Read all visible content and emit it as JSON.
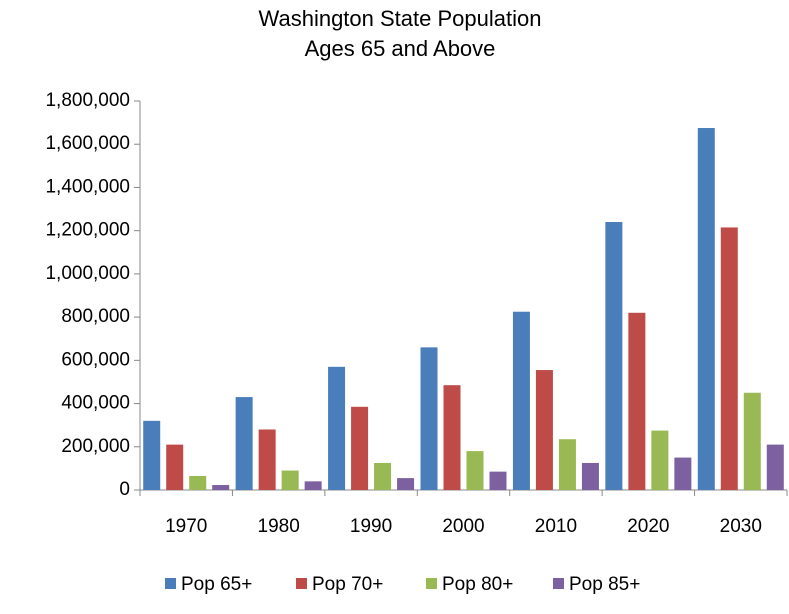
{
  "chart_data": {
    "type": "bar",
    "title": "Washington State Population",
    "subtitle": "Ages 65 and Above",
    "categories": [
      "1970",
      "1980",
      "1990",
      "2000",
      "2010",
      "2020",
      "2030"
    ],
    "series": [
      {
        "name": "Pop 65+",
        "color": "#4a7ebb",
        "values": [
          320000,
          430000,
          570000,
          660000,
          825000,
          1240000,
          1675000
        ]
      },
      {
        "name": "Pop 70+",
        "color": "#be4b48",
        "values": [
          210000,
          280000,
          385000,
          485000,
          555000,
          820000,
          1215000
        ]
      },
      {
        "name": "Pop 80+",
        "color": "#98b954",
        "values": [
          65000,
          90000,
          125000,
          180000,
          235000,
          275000,
          450000
        ]
      },
      {
        "name": "Pop 85+",
        "color": "#7d60a0",
        "values": [
          23000,
          40000,
          55000,
          85000,
          125000,
          150000,
          210000
        ]
      }
    ],
    "ylim": [
      0,
      1800000
    ],
    "yticks": [
      0,
      {
        "value": 200000,
        "label": "200,000"
      },
      {
        "value": 400000,
        "label": "400,000"
      },
      {
        "value": 600000,
        "label": "600,000"
      },
      {
        "value": 800000,
        "label": "800,000"
      },
      {
        "value": 1000000,
        "label": "1,000,000"
      },
      {
        "value": 1200000,
        "label": "1,200,000"
      },
      {
        "value": 1400000,
        "label": "1,400,000"
      },
      {
        "value": 1600000,
        "label": "1,600,000"
      },
      {
        "value": 1800000,
        "label": "1,800,000"
      }
    ],
    "grid": false,
    "legend": "bottom"
  }
}
